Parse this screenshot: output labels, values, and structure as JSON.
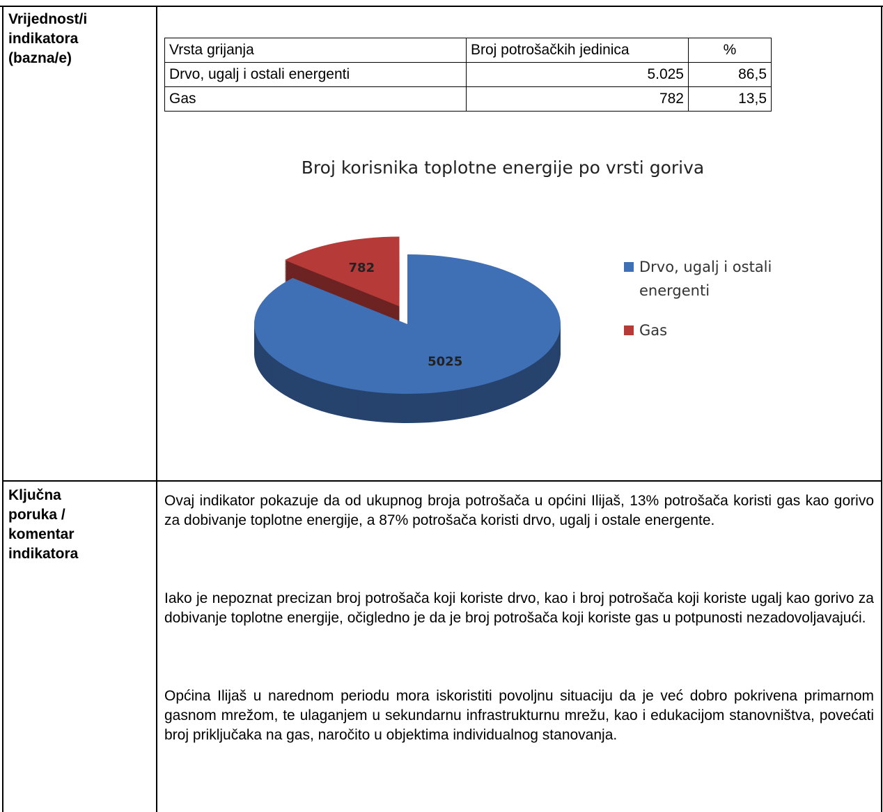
{
  "rows": [
    {
      "label": "Vrijednost/i indikatora (bazna/e)"
    },
    {
      "label": "Ključna poruka / komentar indikatora",
      "paragraphs": [
        "Ovaj indikator pokazuje da od ukupnog broja potrošača u općini Ilijaš, 13% potrošača koristi gas kao gorivo za dobivanje toplotne energije, a 87% potrošača koristi drvo, ugalj i ostale energente.",
        "Iako je nepoznat precizan broj potrošača koji koriste drvo, kao i broj potrošača koji koriste ugalj kao gorivo za dobivanje toplotne energije, očigledno je da je broj potrošača koji koriste gas u potpunosti nezadovoljavajući.",
        "Općina Ilijaš u narednom periodu mora iskoristiti povoljnu situaciju da je već dobro pokrivena primarnom gasnom mrežom, te ulaganjem u sekundarnu infrastrukturnu mrežu, kao i edukacijom stanovništva, povećati broj priključaka na gas, naročito u objektima individualnog stanovanja."
      ]
    }
  ],
  "table": {
    "header": [
      "Vrsta grijanja",
      "Broj potrošačkih jedinica",
      "%"
    ],
    "rows": [
      [
        "Drvo, ugalj i ostali energenti",
        "5.025",
        "86,5"
      ],
      [
        "Gas",
        "782",
        "13,5"
      ]
    ]
  },
  "chart_data": {
    "type": "pie",
    "title": "Broj korisnika toplotne energije po vrsti goriva",
    "categories": [
      "Drvo, ugalj i ostali energenti",
      "Gas"
    ],
    "values": [
      5025,
      782
    ],
    "colors": [
      "#3f6fb5",
      "#b53a38"
    ]
  }
}
